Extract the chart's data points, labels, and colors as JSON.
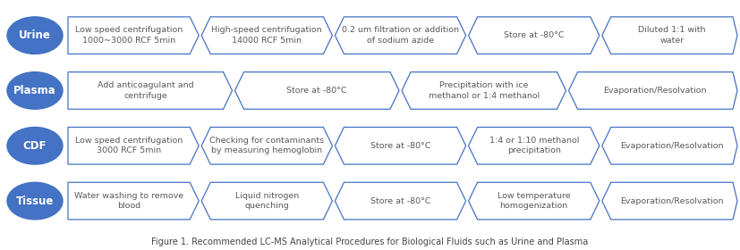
{
  "rows": [
    {
      "label": "Urine",
      "steps": [
        "Low speed centrifugation\n1000~3000 RCF 5min",
        "High-speed centrifugation\n14000 RCF 5min",
        "0.2 um filtration or addition\nof sodium azide",
        "Store at -80°C",
        "Diluted 1:1 with\nwater"
      ]
    },
    {
      "label": "Plasma",
      "steps": [
        "Add anticoagulant and\ncentrifuge",
        "Store at -80°C",
        "Precipitation with ice\nmethanol or 1:4 methanol",
        "Evaporation/Resolvation"
      ]
    },
    {
      "label": "CDF",
      "steps": [
        "Low speed centrifugation\n3000 RCF 5min",
        "Checking for contaminants\nby measuring hemoglobin",
        "Store at -80°C",
        "1:4 or 1:10 methanol\nprecipitation",
        "Evaporation/Resolvation"
      ]
    },
    {
      "label": "Tissue",
      "steps": [
        "Water washing to remove\nblood",
        "Liquid nitrogen\nquenching",
        "Store at -80°C",
        "Low temperature\nhomogenization",
        "Evaporation/Resolvation"
      ]
    }
  ],
  "ellipse_color": "#4472C4",
  "ellipse_text_color": "#ffffff",
  "box_edge_color": "#4472C4",
  "box_face_color": "#ffffff",
  "box_text_color": "#595959",
  "background_color": "#ffffff",
  "caption": "Figure 1. Recommended LC-MS Analytical Procedures for Biological Fluids such as Urine and Plasma",
  "fontsize_label": 8.5,
  "fontsize_step": 6.8,
  "fontsize_caption": 7.0
}
